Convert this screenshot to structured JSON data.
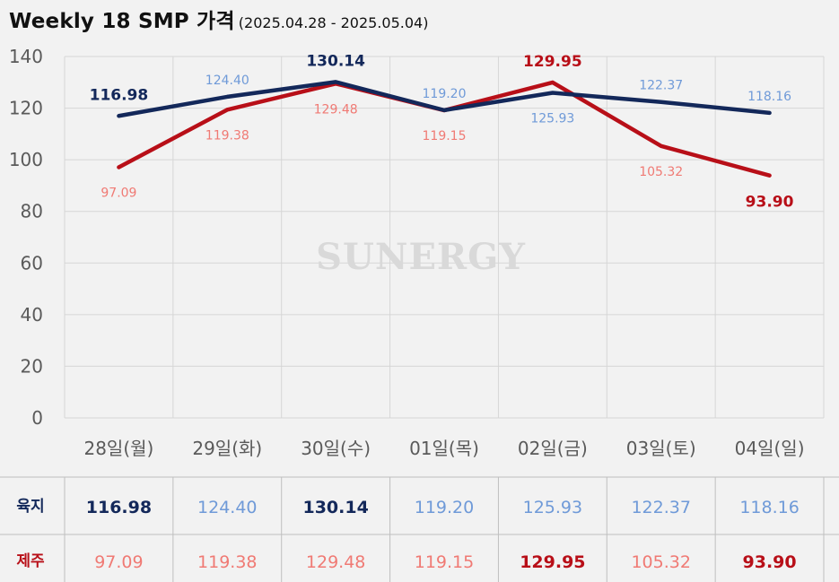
{
  "title": {
    "main": "Weekly 18 SMP 가격",
    "subtitle": "(2025.04.28 - 2025.05.04)"
  },
  "watermark": "SUNERGY",
  "colors": {
    "background": "#f2f2f2",
    "grid": "#d6d6d6",
    "series_land": "#13285a",
    "series_land_light": "#6f9ad8",
    "series_jeju": "#b80f18",
    "series_jeju_light": "#f07a74"
  },
  "chart_data": {
    "type": "line",
    "title": "Weekly 18 SMP 가격",
    "subtitle": "(2025.04.28 - 2025.05.04)",
    "xlabel": "",
    "ylabel": "",
    "ylim": [
      0,
      140
    ],
    "yticks": [
      0,
      20,
      40,
      60,
      80,
      100,
      120,
      140
    ],
    "grid": true,
    "categories": [
      "28일(월)",
      "29일(화)",
      "30일(수)",
      "01일(목)",
      "02일(금)",
      "03일(토)",
      "04일(일)"
    ],
    "series": [
      {
        "name": "육지",
        "values": [
          116.98,
          124.4,
          130.14,
          119.2,
          125.93,
          122.37,
          118.16
        ],
        "labels": [
          "116.98",
          "124.40",
          "130.14",
          "119.20",
          "125.93",
          "122.37",
          "118.16"
        ],
        "emphasized": [
          true,
          false,
          true,
          false,
          false,
          false,
          false
        ],
        "label_position": [
          "above",
          "above",
          "above",
          "above",
          "below",
          "above",
          "above"
        ]
      },
      {
        "name": "제주",
        "values": [
          97.09,
          119.38,
          129.48,
          119.15,
          129.95,
          105.32,
          93.9
        ],
        "labels": [
          "97.09",
          "119.38",
          "129.48",
          "119.15",
          "129.95",
          "105.32",
          "93.90"
        ],
        "emphasized": [
          false,
          false,
          false,
          false,
          true,
          false,
          true
        ],
        "label_position": [
          "below",
          "below",
          "below",
          "below",
          "above",
          "below",
          "below"
        ]
      }
    ]
  },
  "table": {
    "rows": [
      {
        "header": "육지",
        "cells": [
          "116.98",
          "124.40",
          "130.14",
          "119.20",
          "125.93",
          "122.37",
          "118.16"
        ],
        "bold": [
          true,
          false,
          true,
          false,
          false,
          false,
          false
        ]
      },
      {
        "header": "제주",
        "cells": [
          "97.09",
          "119.38",
          "129.48",
          "119.15",
          "129.95",
          "105.32",
          "93.90"
        ],
        "bold": [
          false,
          false,
          false,
          false,
          true,
          false,
          true
        ]
      }
    ]
  }
}
